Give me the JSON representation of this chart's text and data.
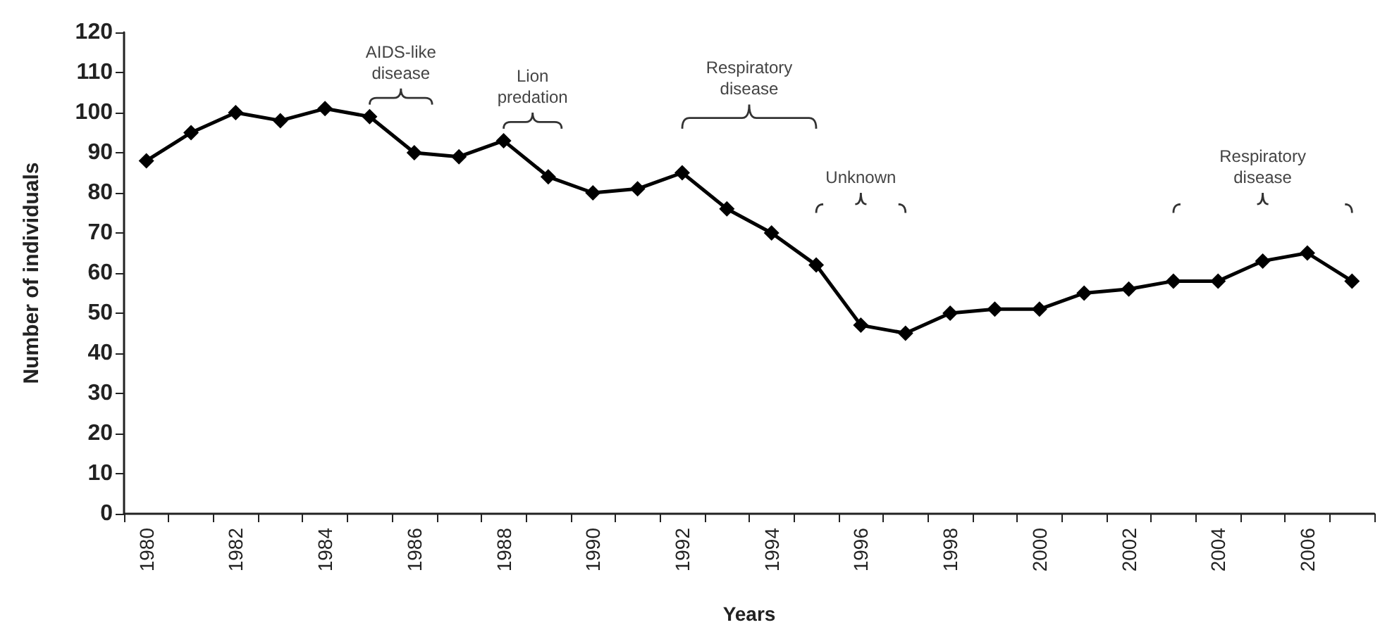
{
  "chart_data": {
    "type": "line",
    "xlabel": "Years",
    "ylabel": "Number of individuals",
    "categories": [
      "1980",
      null,
      "1982",
      null,
      "1984",
      null,
      "1986",
      null,
      "1988",
      null,
      "1990",
      null,
      "1992",
      null,
      "1994",
      null,
      "1996",
      null,
      "1998",
      null,
      "2000",
      null,
      "2002",
      null,
      "2004",
      null,
      "2006",
      null
    ],
    "series": [
      {
        "color": "#000000",
        "values": [
          88,
          95,
          100,
          98,
          101,
          99,
          90,
          89,
          93,
          84,
          80,
          81,
          85,
          76,
          70,
          62,
          47,
          45,
          50,
          51,
          51,
          55,
          56,
          58,
          58,
          63,
          65,
          58
        ]
      }
    ],
    "ylim": [
      0,
      120
    ],
    "yticks": [
      0,
      10,
      20,
      30,
      40,
      50,
      60,
      70,
      80,
      90,
      100,
      110,
      120
    ],
    "annotations": [
      "AIDS-like\ndisease",
      "Lion\npredation",
      "Respiratory\ndisease",
      "Unknown",
      "Respiratory\ndisease"
    ],
    "marker": "diamond",
    "line_style": "solid",
    "grid": false
  }
}
